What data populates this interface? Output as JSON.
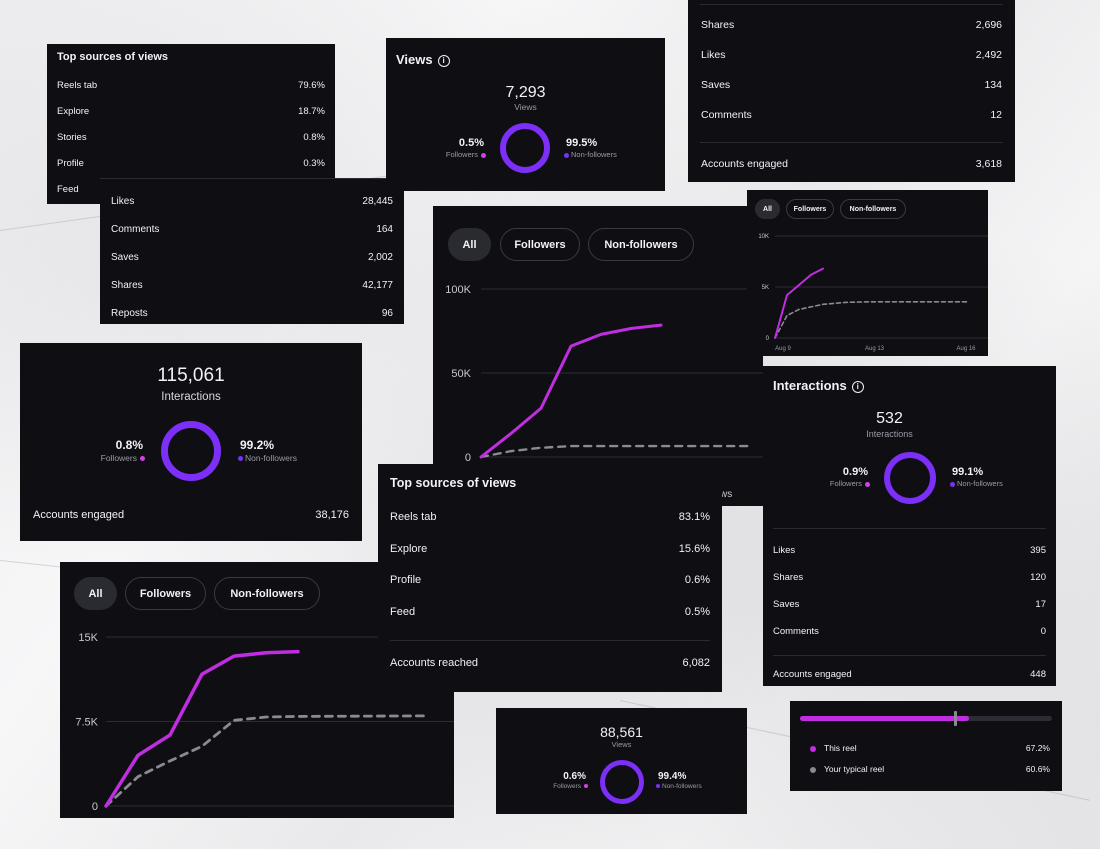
{
  "colors": {
    "this_reel": "#c12de0",
    "followers_dot": "#d53fe8",
    "nonfollowers_dot": "#7b2ff7",
    "typical": "#8a8a93"
  },
  "card_sources_a": {
    "title": "Top sources of views",
    "rows": [
      {
        "label": "Reels tab",
        "value": "79.6%"
      },
      {
        "label": "Explore",
        "value": "18.7%"
      },
      {
        "label": "Stories",
        "value": "0.8%"
      },
      {
        "label": "Profile",
        "value": "0.3%"
      },
      {
        "label": "Feed",
        "value": ""
      }
    ]
  },
  "card_interactions_list": {
    "rows": [
      {
        "label": "Likes",
        "value": "28,445"
      },
      {
        "label": "Comments",
        "value": "164"
      },
      {
        "label": "Saves",
        "value": "2,002"
      },
      {
        "label": "Shares",
        "value": "42,177"
      },
      {
        "label": "Reposts",
        "value": "96"
      }
    ]
  },
  "card_views_small": {
    "title": "Views",
    "total": "7,293",
    "total_label": "Views",
    "followers_pct": "0.5%",
    "followers_label": "Followers",
    "nonfollowers_pct": "99.5%",
    "nonfollowers_label": "Non-followers"
  },
  "card_top_right": {
    "rows": [
      {
        "label": "Shares",
        "value": "2,696"
      },
      {
        "label": "Likes",
        "value": "2,492"
      },
      {
        "label": "Saves",
        "value": "134"
      },
      {
        "label": "Comments",
        "value": "12"
      }
    ],
    "engaged_label": "Accounts engaged",
    "engaged_value": "3,618"
  },
  "card_interactions_big": {
    "total": "115,061",
    "total_label": "Interactions",
    "followers_pct": "0.8%",
    "followers_label": "Followers",
    "nonfollowers_pct": "99.2%",
    "nonfollowers_label": "Non-followers",
    "engaged_label": "Accounts engaged",
    "engaged_value": "38,176"
  },
  "chart_big_tabs": [
    "All",
    "Followers",
    "Non-followers"
  ],
  "chart_big_cutoff": "ws",
  "chart_small_tabs": [
    "All",
    "Followers",
    "Non-followers"
  ],
  "chart_bottom_tabs": [
    "All",
    "Followers",
    "Non-followers"
  ],
  "card_interactions_right": {
    "title": "Interactions",
    "total": "532",
    "total_label": "Interactions",
    "followers_pct": "0.9%",
    "followers_label": "Followers",
    "nonfollowers_pct": "99.1%",
    "nonfollowers_label": "Non-followers",
    "rows": [
      {
        "label": "Likes",
        "value": "395"
      },
      {
        "label": "Shares",
        "value": "120"
      },
      {
        "label": "Saves",
        "value": "17"
      },
      {
        "label": "Comments",
        "value": "0"
      }
    ],
    "engaged_label": "Accounts engaged",
    "engaged_value": "448"
  },
  "card_sources_b": {
    "title": "Top sources of views",
    "rows": [
      {
        "label": "Reels tab",
        "value": "83.1%"
      },
      {
        "label": "Explore",
        "value": "15.6%"
      },
      {
        "label": "Profile",
        "value": "0.6%"
      },
      {
        "label": "Feed",
        "value": "0.5%"
      }
    ],
    "reached_label": "Accounts reached",
    "reached_value": "6,082"
  },
  "card_views_bottom": {
    "total": "88,561",
    "total_label": "Views",
    "followers_pct": "0.6%",
    "followers_label": "Followers",
    "nonfollowers_pct": "99.4%",
    "nonfollowers_label": "Non-followers"
  },
  "card_compare": {
    "this_label": "This reel",
    "this_value": "67.2%",
    "this_fraction": 0.672,
    "typical_label": "Your typical reel",
    "typical_value": "60.6%",
    "typical_fraction": 0.606
  },
  "chart_data": [
    {
      "type": "line",
      "yticks": [
        "100K",
        "50K",
        "0"
      ],
      "ylim": [
        0,
        100000
      ],
      "series": [
        {
          "values": [
            [
              0,
              0
            ],
            [
              1,
              14000
            ],
            [
              2,
              29000
            ],
            [
              3,
              66000
            ],
            [
              4,
              73000
            ],
            [
              5,
              76500
            ],
            [
              6,
              78500
            ]
          ]
        },
        {
          "values": [
            [
              0,
              0
            ],
            [
              1,
              3500
            ],
            [
              2,
              5500
            ],
            [
              3,
              6500
            ],
            [
              4,
              6500
            ],
            [
              5,
              6500
            ],
            [
              6,
              6500
            ],
            [
              9,
              6500
            ]
          ]
        }
      ]
    },
    {
      "type": "line",
      "yticks": [
        "10K",
        "5K",
        "0"
      ],
      "xticks": [
        "Aug 9",
        "Aug 13",
        "Aug 16"
      ],
      "ylim": [
        0,
        10000
      ],
      "series": [
        {
          "values": [
            [
              0,
              0
            ],
            [
              0.5,
              4200
            ],
            [
              1,
              5200
            ],
            [
              1.5,
              6200
            ],
            [
              2,
              6800
            ]
          ]
        },
        {
          "values": [
            [
              0,
              0
            ],
            [
              0.5,
              2200
            ],
            [
              1,
              2800
            ],
            [
              2,
              3300
            ],
            [
              3,
              3500
            ],
            [
              4,
              3550
            ],
            [
              5,
              3550
            ],
            [
              8,
              3550
            ]
          ]
        }
      ]
    },
    {
      "type": "line",
      "yticks": [
        "15K",
        "7.5K",
        "0"
      ],
      "ylim": [
        0,
        15000
      ],
      "series": [
        {
          "values": [
            [
              0,
              0
            ],
            [
              1,
              4500
            ],
            [
              2,
              6300
            ],
            [
              3,
              11700
            ],
            [
              4,
              13300
            ],
            [
              5,
              13600
            ],
            [
              6,
              13700
            ]
          ]
        },
        {
          "values": [
            [
              0,
              0
            ],
            [
              1,
              2600
            ],
            [
              2,
              4000
            ],
            [
              3,
              5300
            ],
            [
              4,
              7600
            ],
            [
              5,
              7900
            ],
            [
              6,
              7950
            ],
            [
              10,
              8000
            ]
          ]
        }
      ]
    }
  ]
}
